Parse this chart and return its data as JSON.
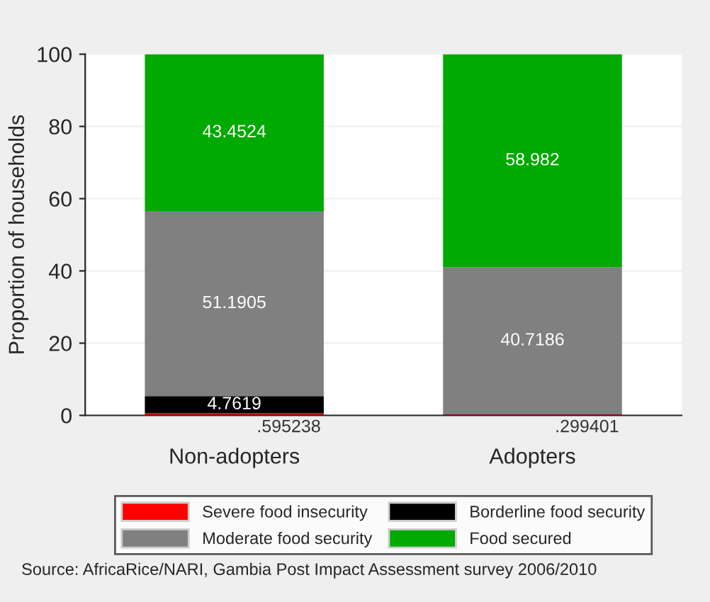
{
  "chart_data": {
    "type": "bar",
    "stacked": true,
    "ylabel": "Proportion of households",
    "categories": [
      "Non-adopters",
      "Adopters"
    ],
    "series": [
      {
        "name": "Severe food insecurity",
        "color": "#ff0000",
        "values": [
          0.595238,
          0.299401
        ],
        "value_labels": [
          ".595238",
          ".299401"
        ]
      },
      {
        "name": "Borderline food security",
        "color": "#000000",
        "values": [
          4.7619,
          0
        ],
        "value_labels": [
          "4.7619",
          null
        ]
      },
      {
        "name": "Moderate food security",
        "color": "#808080",
        "values": [
          51.1905,
          40.7186
        ],
        "value_labels": [
          "51.1905",
          "40.7186"
        ]
      },
      {
        "name": "Food secured",
        "color": "#00aa00",
        "values": [
          43.4524,
          58.982
        ],
        "value_labels": [
          "43.4524",
          "58.982"
        ]
      }
    ],
    "ylim": [
      0,
      100
    ],
    "yticks": [
      0,
      20,
      40,
      60,
      80,
      100
    ],
    "grid": "y",
    "legend": "bottom",
    "annotations": [
      "Source: AfricaRice/NARI, Gambia Post Impact Assessment survey 2006/2010"
    ]
  }
}
